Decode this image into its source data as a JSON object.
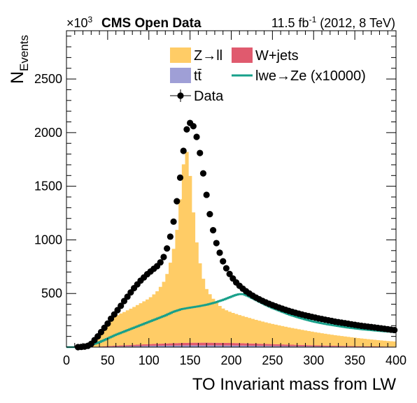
{
  "header": {
    "scale_prefix": "×10",
    "scale_exponent": "3",
    "experiment_label": "CMS Open Data",
    "lumi_value": "11.5 fb",
    "lumi_exponent": "-1",
    "lumi_suffix": " (2012, 8 TeV)"
  },
  "chart_data": {
    "type": "bar",
    "xlabel": "TO Invariant mass from LW",
    "ylabel_main": "N",
    "ylabel_sub": "Events",
    "xlim": [
      0,
      400
    ],
    "ylim": [
      0,
      2950
    ],
    "xticks": [
      0,
      50,
      100,
      150,
      200,
      250,
      300,
      350,
      400
    ],
    "yticks": [
      500,
      1000,
      1500,
      2000,
      2500
    ],
    "bin_width": 4,
    "grid": false,
    "legend_position": "top-center",
    "colors": {
      "zll": "#ffcc66",
      "wjets": "#e05a6e",
      "ttbar": "#9f9fd6",
      "signal": "#17a08a",
      "data": "#000000"
    },
    "legend": [
      {
        "key": "zll",
        "label": "Z→ll",
        "style": "box"
      },
      {
        "key": "wjets",
        "label": "W+jets",
        "style": "box"
      },
      {
        "key": "ttbar",
        "label": "tt̄",
        "style": "box"
      },
      {
        "key": "signal",
        "label": "lwe→Ze (x10000)",
        "style": "line"
      },
      {
        "key": "data",
        "label": "Data",
        "style": "marker"
      }
    ],
    "series": [
      {
        "key": "zll",
        "name": "Z→ll",
        "kind": "stacked_hist",
        "points": [
          [
            0,
            0
          ],
          [
            10,
            0
          ],
          [
            15,
            3
          ],
          [
            20,
            8
          ],
          [
            25,
            18
          ],
          [
            30,
            35
          ],
          [
            35,
            70
          ],
          [
            40,
            120
          ],
          [
            45,
            170
          ],
          [
            50,
            215
          ],
          [
            55,
            250
          ],
          [
            60,
            275
          ],
          [
            65,
            295
          ],
          [
            70,
            310
          ],
          [
            75,
            328
          ],
          [
            80,
            345
          ],
          [
            85,
            365
          ],
          [
            90,
            385
          ],
          [
            95,
            405
          ],
          [
            100,
            425
          ],
          [
            105,
            455
          ],
          [
            110,
            490
          ],
          [
            115,
            540
          ],
          [
            120,
            600
          ],
          [
            125,
            720
          ],
          [
            130,
            880
          ],
          [
            135,
            1100
          ],
          [
            140,
            1500
          ],
          [
            144,
            1830
          ],
          [
            148,
            1730
          ],
          [
            152,
            1380
          ],
          [
            156,
            1050
          ],
          [
            160,
            820
          ],
          [
            165,
            620
          ],
          [
            170,
            500
          ],
          [
            175,
            440
          ],
          [
            180,
            390
          ],
          [
            185,
            350
          ],
          [
            190,
            320
          ],
          [
            195,
            300
          ],
          [
            200,
            285
          ],
          [
            210,
            262
          ],
          [
            220,
            242
          ],
          [
            230,
            222
          ],
          [
            240,
            204
          ],
          [
            250,
            188
          ],
          [
            260,
            174
          ],
          [
            270,
            160
          ],
          [
            280,
            148
          ],
          [
            290,
            136
          ],
          [
            300,
            125
          ],
          [
            310,
            114
          ],
          [
            320,
            104
          ],
          [
            330,
            95
          ],
          [
            340,
            87
          ],
          [
            350,
            79
          ],
          [
            360,
            71
          ],
          [
            370,
            64
          ],
          [
            380,
            58
          ],
          [
            390,
            52
          ],
          [
            400,
            48
          ]
        ]
      },
      {
        "key": "wjets",
        "name": "W+jets",
        "kind": "stacked_hist",
        "points": [
          [
            0,
            0
          ],
          [
            30,
            0
          ],
          [
            40,
            3
          ],
          [
            50,
            6
          ],
          [
            70,
            10
          ],
          [
            100,
            16
          ],
          [
            130,
            22
          ],
          [
            150,
            25
          ],
          [
            170,
            26
          ],
          [
            200,
            24
          ],
          [
            250,
            17
          ],
          [
            300,
            10
          ],
          [
            350,
            5
          ],
          [
            400,
            2
          ]
        ]
      },
      {
        "key": "ttbar",
        "name": "tt̄",
        "kind": "stacked_hist",
        "points": [
          [
            0,
            0
          ],
          [
            30,
            0
          ],
          [
            40,
            2
          ],
          [
            60,
            6
          ],
          [
            100,
            12
          ],
          [
            150,
            16
          ],
          [
            200,
            15
          ],
          [
            250,
            11
          ],
          [
            300,
            7
          ],
          [
            350,
            4
          ],
          [
            400,
            2
          ]
        ]
      },
      {
        "key": "signal",
        "name": "lwe→Ze (x10000)",
        "kind": "line",
        "points": [
          [
            0,
            0
          ],
          [
            15,
            0
          ],
          [
            20,
            5
          ],
          [
            30,
            20
          ],
          [
            40,
            45
          ],
          [
            50,
            80
          ],
          [
            60,
            115
          ],
          [
            70,
            145
          ],
          [
            80,
            175
          ],
          [
            90,
            205
          ],
          [
            100,
            235
          ],
          [
            110,
            265
          ],
          [
            120,
            295
          ],
          [
            130,
            330
          ],
          [
            140,
            355
          ],
          [
            150,
            368
          ],
          [
            160,
            380
          ],
          [
            170,
            395
          ],
          [
            180,
            415
          ],
          [
            190,
            440
          ],
          [
            200,
            470
          ],
          [
            205,
            485
          ],
          [
            210,
            495
          ],
          [
            215,
            493
          ],
          [
            220,
            478
          ],
          [
            230,
            440
          ],
          [
            240,
            400
          ],
          [
            250,
            365
          ],
          [
            260,
            335
          ],
          [
            270,
            305
          ],
          [
            280,
            280
          ],
          [
            290,
            258
          ],
          [
            300,
            238
          ],
          [
            310,
            222
          ],
          [
            320,
            208
          ],
          [
            330,
            196
          ],
          [
            340,
            184
          ],
          [
            350,
            174
          ],
          [
            360,
            165
          ],
          [
            370,
            158
          ],
          [
            380,
            151
          ],
          [
            390,
            145
          ],
          [
            400,
            140
          ]
        ]
      },
      {
        "key": "data",
        "name": "Data",
        "kind": "points",
        "points": [
          [
            14,
            0
          ],
          [
            18,
            2
          ],
          [
            22,
            5
          ],
          [
            26,
            12
          ],
          [
            30,
            30
          ],
          [
            34,
            65
          ],
          [
            38,
            100
          ],
          [
            42,
            140
          ],
          [
            46,
            180
          ],
          [
            50,
            220
          ],
          [
            54,
            265
          ],
          [
            58,
            305
          ],
          [
            62,
            345
          ],
          [
            66,
            385
          ],
          [
            70,
            430
          ],
          [
            74,
            470
          ],
          [
            78,
            510
          ],
          [
            82,
            550
          ],
          [
            86,
            585
          ],
          [
            90,
            620
          ],
          [
            94,
            650
          ],
          [
            98,
            680
          ],
          [
            102,
            705
          ],
          [
            106,
            730
          ],
          [
            110,
            755
          ],
          [
            114,
            790
          ],
          [
            118,
            840
          ],
          [
            122,
            920
          ],
          [
            126,
            1030
          ],
          [
            130,
            1170
          ],
          [
            134,
            1360
          ],
          [
            138,
            1580
          ],
          [
            142,
            1830
          ],
          [
            146,
            2030
          ],
          [
            150,
            2090
          ],
          [
            154,
            2060
          ],
          [
            158,
            1960
          ],
          [
            162,
            1810
          ],
          [
            166,
            1620
          ],
          [
            170,
            1420
          ],
          [
            174,
            1240
          ],
          [
            178,
            1090
          ],
          [
            182,
            970
          ],
          [
            186,
            880
          ],
          [
            190,
            800
          ],
          [
            194,
            735
          ],
          [
            198,
            682
          ],
          [
            202,
            640
          ],
          [
            206,
            603
          ],
          [
            210,
            572
          ],
          [
            214,
            545
          ],
          [
            218,
            521
          ],
          [
            222,
            500
          ],
          [
            226,
            480
          ],
          [
            230,
            462
          ],
          [
            234,
            446
          ],
          [
            238,
            431
          ],
          [
            242,
            417
          ],
          [
            246,
            404
          ],
          [
            250,
            392
          ],
          [
            254,
            380
          ],
          [
            258,
            369
          ],
          [
            262,
            358
          ],
          [
            266,
            348
          ],
          [
            270,
            338
          ],
          [
            274,
            329
          ],
          [
            278,
            320
          ],
          [
            282,
            312
          ],
          [
            286,
            304
          ],
          [
            290,
            296
          ],
          [
            294,
            289
          ],
          [
            298,
            282
          ],
          [
            302,
            275
          ],
          [
            306,
            268
          ],
          [
            310,
            262
          ],
          [
            314,
            256
          ],
          [
            318,
            250
          ],
          [
            322,
            244
          ],
          [
            326,
            238
          ],
          [
            330,
            233
          ],
          [
            334,
            228
          ],
          [
            338,
            223
          ],
          [
            342,
            218
          ],
          [
            346,
            213
          ],
          [
            350,
            208
          ],
          [
            354,
            203
          ],
          [
            358,
            199
          ],
          [
            362,
            195
          ],
          [
            366,
            191
          ],
          [
            370,
            187
          ],
          [
            374,
            183
          ],
          [
            378,
            179
          ],
          [
            382,
            175
          ],
          [
            386,
            171
          ],
          [
            390,
            167
          ],
          [
            394,
            163
          ],
          [
            398,
            159
          ]
        ]
      }
    ]
  }
}
